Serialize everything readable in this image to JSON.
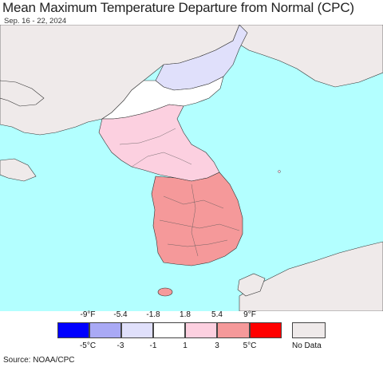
{
  "title": "Mean Maximum Temperature Departure from Normal (CPC)",
  "date_range": "Sep. 16 - 22, 2024",
  "source": "Source: NOAA/CPC",
  "colors": {
    "ocean": "#b3ffff",
    "no_data": "#efeaea",
    "border": "#333333"
  },
  "legend": {
    "fahrenheit_ticks": [
      "-9°F",
      "-5.4",
      "-1.8",
      "1.8",
      "5.4",
      "9°F"
    ],
    "celsius_ticks": [
      "-5°C",
      "-3",
      "-1",
      "1",
      "3",
      "5°C"
    ],
    "bins": [
      {
        "color": "#0000ff"
      },
      {
        "color": "#a9a9f5"
      },
      {
        "color": "#e0e0fb"
      },
      {
        "color": "#ffffff"
      },
      {
        "color": "#fcd0e0"
      },
      {
        "color": "#f5999a"
      },
      {
        "color": "#ff0000"
      }
    ],
    "no_data_label": "No Data"
  }
}
